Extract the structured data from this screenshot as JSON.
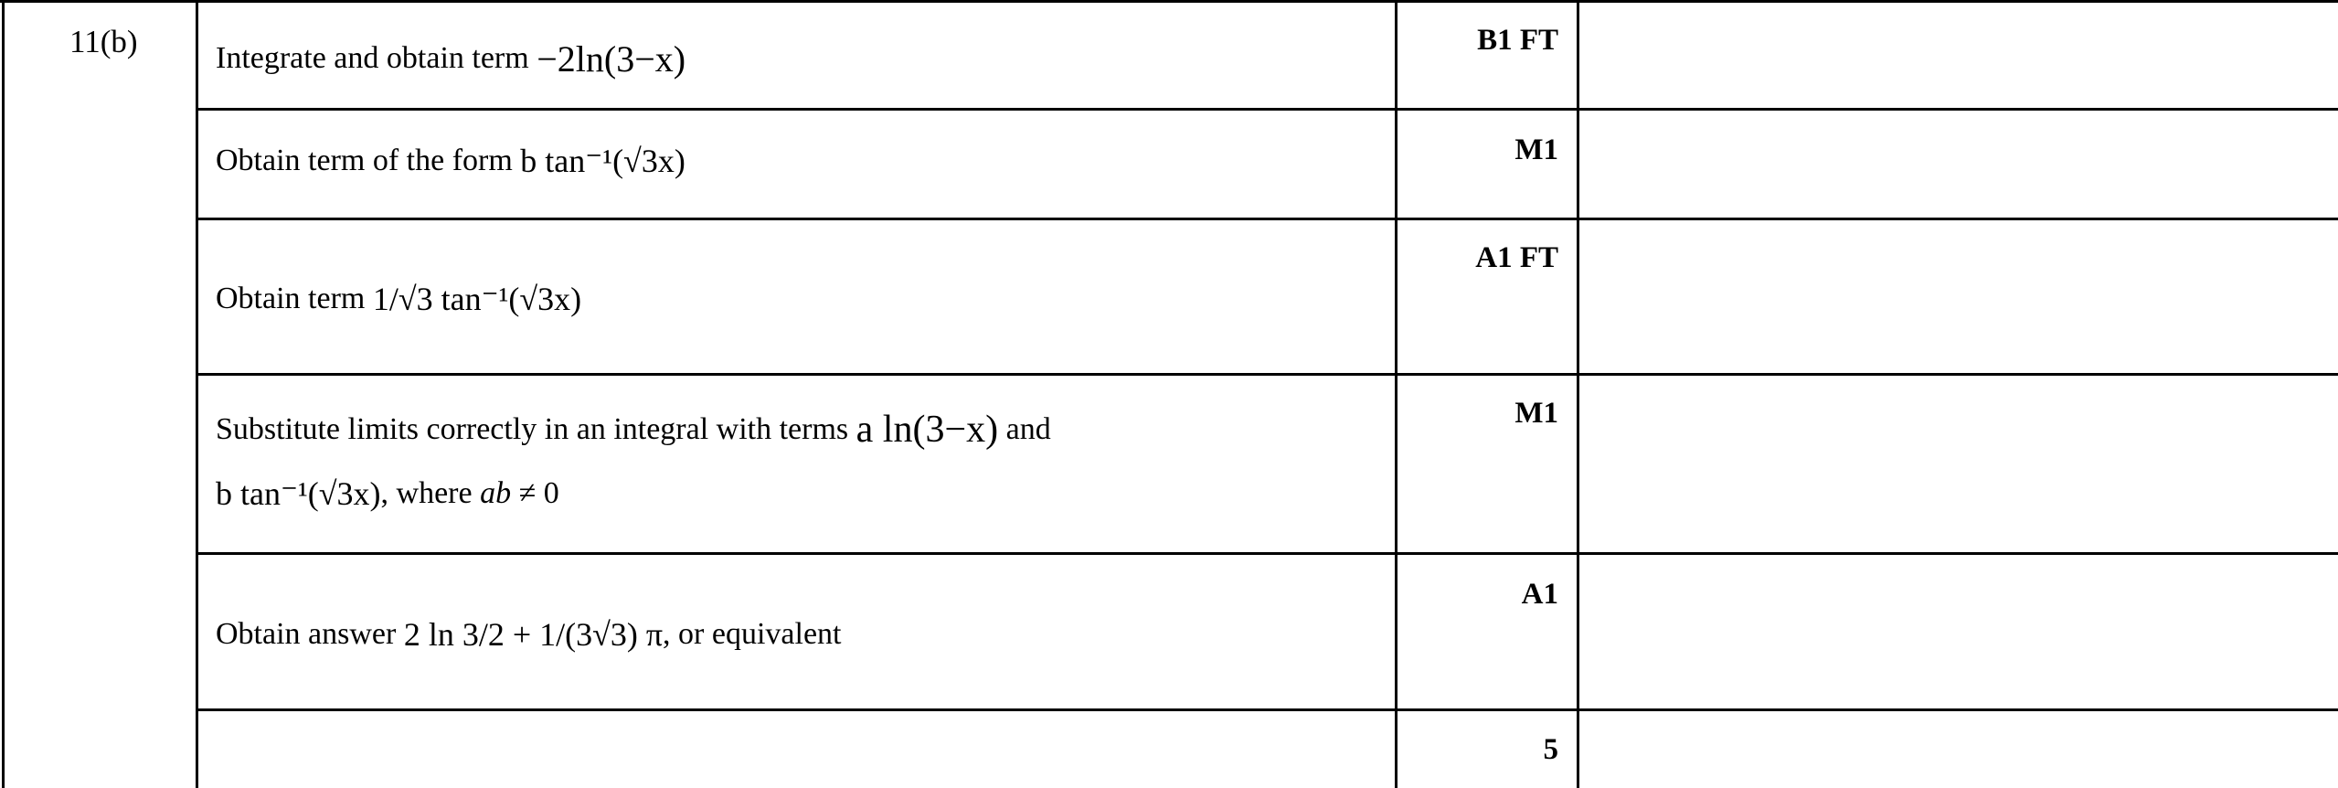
{
  "question": "11(b)",
  "rows": [
    {
      "text": "Integrate and obtain term",
      "math": "−2ln(3−x)",
      "mark": "B1 FT"
    },
    {
      "text": "Obtain term of the form",
      "math": "b tan⁻¹(√3x)",
      "mark": "M1"
    },
    {
      "text": "Obtain term",
      "math": "1/√3 tan⁻¹(√3x)",
      "mark": "A1 FT"
    },
    {
      "text": "Substitute limits correctly in an integral with terms",
      "math": "a ln(3−x)",
      "text2": "and",
      "math2": "b tan⁻¹(√3x)",
      "text3": ", where",
      "math3": "ab ≠ 0",
      "mark": "M1"
    },
    {
      "text": "Obtain answer",
      "math": "2 ln 3/2 + 1/(3√3) π",
      "text2": ", or equivalent",
      "mark": "A1"
    },
    {
      "text": "",
      "mark": "5"
    }
  ],
  "math_parts": {
    "minus2": "−2",
    "ln": "ln",
    "three_minus": "3−",
    "x": "x",
    "b": "b",
    "a": "a",
    "tan": "tan",
    "inv": "-1",
    "sqrt": "√",
    "three": "3",
    "one": "1",
    "two": "2",
    "plus": "+",
    "pi": "π",
    "ab": "ab",
    "neq": "≠ 0",
    "three_b": "3"
  }
}
